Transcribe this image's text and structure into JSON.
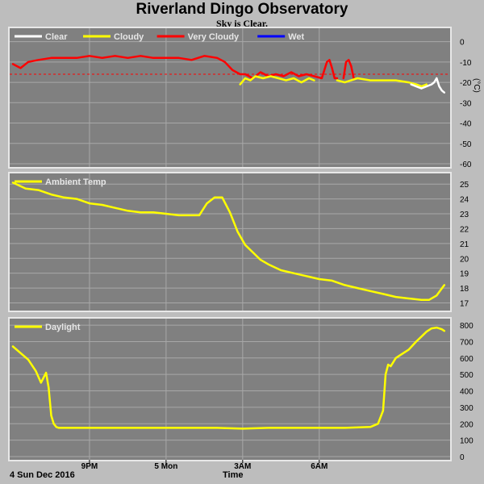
{
  "header": {
    "title": "Riverland Dingo Observatory",
    "status": "Sky is Clear."
  },
  "footer": {
    "date": "4 Sun Dec 2016",
    "xlabel": "Time"
  },
  "colors": {
    "background": "#bdbdbd",
    "plot_bg": "#808080",
    "grid": "#a8a8a8",
    "clear": "#ffffff",
    "cloudy": "#ffff00",
    "very_cloudy": "#ff0000",
    "wet": "#0000ff",
    "threshold": "#ff0000"
  },
  "chart_data": [
    {
      "type": "line",
      "name": "sky",
      "legend": [
        {
          "label": "Clear",
          "color": "#ffffff"
        },
        {
          "label": "Cloudy",
          "color": "#ffff00"
        },
        {
          "label": "Very Cloudy",
          "color": "#ff0000"
        },
        {
          "label": "Wet",
          "color": "#0000ff"
        }
      ],
      "ylabel": "(°C)",
      "ylim": [
        -60,
        5
      ],
      "yticks": [
        0,
        -10,
        -20,
        -30,
        -40,
        -50,
        -60
      ],
      "threshold": -16,
      "series": [
        {
          "color": "#ff0000",
          "x": [
            18.0,
            18.3,
            18.6,
            19.0,
            19.5,
            20.0,
            20.5,
            21.0,
            21.5,
            22.0,
            22.5,
            23.0,
            23.5,
            24.0,
            24.5,
            25.0,
            25.5,
            26.0,
            26.3,
            26.6,
            26.9,
            27.1,
            27.4,
            27.7,
            28.0,
            28.3,
            28.6,
            28.9,
            29.2,
            29.5,
            29.8,
            30.1,
            30.2,
            30.3,
            30.4,
            30.5,
            30.6,
            30.7
          ],
          "y": [
            -11,
            -13,
            -10,
            -9,
            -8,
            -8,
            -8,
            -7,
            -8,
            -7,
            -8,
            -7,
            -8,
            -8,
            -8,
            -9,
            -7,
            -8,
            -10,
            -14,
            -16,
            -16,
            -18,
            -15,
            -17,
            -16,
            -17,
            -15,
            -17,
            -16,
            -17,
            -18,
            -14,
            -10,
            -9,
            -13,
            -18,
            -18
          ]
        },
        {
          "color": "#ff0000",
          "x": [
            30.95,
            31.05,
            31.15,
            31.25,
            31.35
          ],
          "y": [
            -18,
            -10,
            -9,
            -12,
            -18
          ]
        },
        {
          "color": "#ffff00",
          "x": [
            26.9,
            27.1,
            27.3,
            27.5,
            27.8,
            28.1,
            28.4,
            28.7,
            29.0,
            29.3,
            29.6,
            29.8
          ],
          "y": [
            -21,
            -18,
            -19,
            -17,
            -18,
            -17,
            -18,
            -19,
            -18,
            -20,
            -18,
            -19
          ]
        },
        {
          "color": "#ffff00",
          "x": [
            30.7,
            31.0,
            31.5,
            32.0,
            32.5,
            33.0,
            33.5,
            33.8,
            34.0,
            34.2
          ],
          "y": [
            -19,
            -20,
            -18,
            -19,
            -19,
            -19,
            -20,
            -21,
            -22,
            -21
          ]
        },
        {
          "color": "#ffffff",
          "x": [
            33.6,
            33.8,
            34.0,
            34.2,
            34.4,
            34.5,
            34.6,
            34.7,
            34.8,
            34.9
          ],
          "y": [
            -21,
            -22,
            -23,
            -22,
            -21,
            -20,
            -18,
            -22,
            -24,
            -25
          ]
        }
      ]
    },
    {
      "type": "line",
      "name": "ambient",
      "legend": [
        {
          "label": "Ambient Temp",
          "color": "#ffff00"
        }
      ],
      "ylim": [
        16.7,
        25.5
      ],
      "yticks": [
        25,
        24,
        23,
        22,
        21,
        20,
        19,
        18,
        17
      ],
      "series": [
        {
          "color": "#ffff00",
          "x": [
            18.0,
            18.5,
            19.0,
            19.5,
            20.0,
            20.5,
            21.0,
            21.5,
            22.0,
            22.5,
            23.0,
            23.5,
            24.0,
            24.5,
            25.0,
            25.3,
            25.6,
            25.9,
            26.2,
            26.5,
            26.8,
            27.1,
            27.4,
            27.7,
            28.0,
            28.5,
            29.0,
            29.5,
            30.0,
            30.5,
            31.0,
            31.5,
            32.0,
            32.5,
            33.0,
            33.5,
            34.0,
            34.3,
            34.6,
            34.9
          ],
          "y": [
            25.1,
            24.7,
            24.6,
            24.3,
            24.1,
            24.0,
            23.7,
            23.6,
            23.4,
            23.2,
            23.1,
            23.1,
            23.0,
            22.9,
            22.9,
            22.9,
            23.7,
            24.1,
            24.1,
            23.1,
            21.8,
            20.9,
            20.4,
            19.9,
            19.6,
            19.2,
            19.0,
            18.8,
            18.6,
            18.5,
            18.2,
            18.0,
            17.8,
            17.6,
            17.4,
            17.3,
            17.2,
            17.2,
            17.5,
            18.2
          ]
        }
      ]
    },
    {
      "type": "line",
      "name": "daylight",
      "legend": [
        {
          "label": "Daylight",
          "color": "#ffff00"
        }
      ],
      "ylim": [
        0,
        820
      ],
      "yticks": [
        800,
        700,
        600,
        500,
        400,
        300,
        200,
        100,
        0
      ],
      "series": [
        {
          "color": "#ffff00",
          "x": [
            18.0,
            18.3,
            18.6,
            18.9,
            19.1,
            19.3,
            19.4,
            19.5,
            19.6,
            19.7,
            19.8,
            20.0,
            20.5,
            21.0,
            22.0,
            23.0,
            24.0,
            25.0,
            26.0,
            27.0,
            28.0,
            29.0,
            30.0,
            31.0,
            32.0,
            32.3,
            32.5,
            32.6,
            32.7,
            32.8,
            33.0,
            33.2,
            33.5,
            33.8,
            34.0,
            34.2,
            34.4,
            34.6,
            34.8,
            34.9
          ],
          "y": [
            670,
            630,
            590,
            520,
            450,
            510,
            420,
            250,
            200,
            180,
            175,
            175,
            175,
            175,
            175,
            175,
            175,
            175,
            175,
            170,
            175,
            175,
            175,
            175,
            180,
            200,
            280,
            500,
            560,
            550,
            600,
            620,
            650,
            700,
            730,
            760,
            780,
            785,
            775,
            765
          ]
        }
      ]
    }
  ],
  "x_axis": {
    "range": [
      18.0,
      35.0
    ],
    "ticks": [
      {
        "value": 21,
        "label": "9PM"
      },
      {
        "value": 24,
        "label": "5 Mon"
      },
      {
        "value": 27,
        "label": "3AM"
      },
      {
        "value": 30,
        "label": "6AM"
      }
    ]
  }
}
